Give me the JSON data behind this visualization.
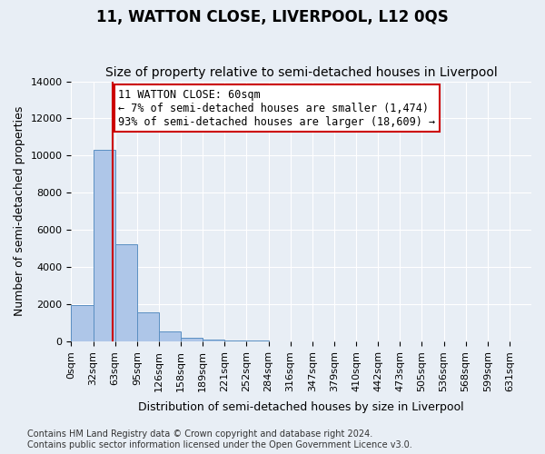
{
  "title": "11, WATTON CLOSE, LIVERPOOL, L12 0QS",
  "subtitle": "Size of property relative to semi-detached houses in Liverpool",
  "xlabel": "Distribution of semi-detached houses by size in Liverpool",
  "ylabel": "Number of semi-detached properties",
  "annotation_title": "11 WATTON CLOSE: 60sqm",
  "annotation_line1": "← 7% of semi-detached houses are smaller (1,474)",
  "annotation_line2": "93% of semi-detached houses are larger (18,609) →",
  "footnote1": "Contains HM Land Registry data © Crown copyright and database right 2024.",
  "footnote2": "Contains public sector information licensed under the Open Government Licence v3.0.",
  "property_size_sqm": 60,
  "bar_width": 31.5,
  "bin_labels": [
    "0sqm",
    "32sqm",
    "63sqm",
    "95sqm",
    "126sqm",
    "158sqm",
    "189sqm",
    "221sqm",
    "252sqm",
    "284sqm",
    "316sqm",
    "347sqm",
    "379sqm",
    "410sqm",
    "442sqm",
    "473sqm",
    "505sqm",
    "536sqm",
    "568sqm",
    "599sqm",
    "631sqm"
  ],
  "bar_values": [
    1950,
    10300,
    5250,
    1550,
    550,
    200,
    100,
    60,
    30,
    10,
    0,
    0,
    0,
    0,
    0,
    0,
    0,
    0,
    0,
    0,
    0
  ],
  "bar_color": "#aec6e8",
  "bar_edge_color": "#5a8fc2",
  "highlight_line_color": "#cc0000",
  "ylim": [
    0,
    14000
  ],
  "yticks": [
    0,
    2000,
    4000,
    6000,
    8000,
    10000,
    12000,
    14000
  ],
  "background_color": "#e8eef5",
  "plot_background_color": "#e8eef5",
  "grid_color": "#ffffff",
  "title_fontsize": 12,
  "subtitle_fontsize": 10,
  "annotation_fontsize": 8.5,
  "axis_label_fontsize": 9,
  "tick_fontsize": 8,
  "footnote_fontsize": 7
}
